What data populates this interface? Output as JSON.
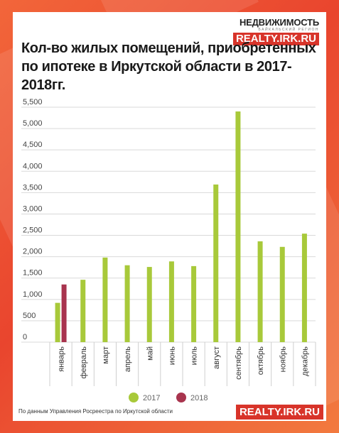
{
  "header": {
    "logo_title": "НЕДВИЖИМОСТЬ",
    "logo_subtitle": "БАЙКАЛЬСКИЙ РЕГИОН",
    "logo_site": "REALTY.IRK.RU",
    "title": "Кол-во жилых помещений, приобретенных по ипотеке в Иркутской области в 2017-2018гг."
  },
  "footer": {
    "source": "По данным Управления Росреестра по Иркутской области",
    "logo_site": "REALTY.IRK.RU"
  },
  "colors": {
    "series_2017": "#a8c93a",
    "series_2018": "#a8344e",
    "accent": "#d8342a"
  },
  "chart_data": {
    "type": "bar",
    "title": "Кол-во жилых помещений, приобретенных по ипотеке в Иркутской области в 2017-2018гг.",
    "categories": [
      "январь",
      "февраль",
      "март",
      "апрель",
      "май",
      "июнь",
      "июль",
      "август",
      "сентябрь",
      "октябрь",
      "ноябрь",
      "декабрь"
    ],
    "series": [
      {
        "name": "2017",
        "values": [
          920,
          1460,
          1980,
          1800,
          1760,
          1890,
          1780,
          3690,
          5400,
          2360,
          2230,
          2540
        ]
      },
      {
        "name": "2018",
        "values": [
          1350,
          null,
          null,
          null,
          null,
          null,
          null,
          null,
          null,
          null,
          null,
          null
        ]
      }
    ],
    "y_ticks": [
      "0",
      "500",
      "1,000",
      "1,500",
      "2,000",
      "2,500",
      "3,000",
      "3,500",
      "4,000",
      "4,500",
      "5,000",
      "5,500"
    ],
    "ylim": [
      0,
      5500
    ],
    "grid": true,
    "legend_position": "bottom"
  }
}
